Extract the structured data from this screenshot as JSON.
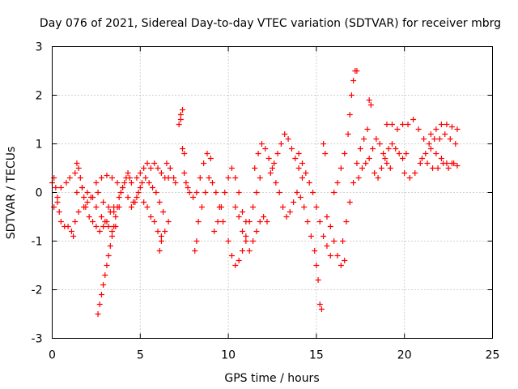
{
  "chart_data": {
    "type": "scatter",
    "title": "Day 076 of 2021, Sidereal Day-to-day VTEC variation (SDTVAR) for receiver mbrg",
    "xlabel": "GPS time / hours",
    "ylabel": "SDTVAR / TECUs",
    "xlim": [
      0,
      25
    ],
    "ylim": [
      -3,
      3
    ],
    "xticks": [
      "0",
      "5",
      "10",
      "15",
      "20",
      "25"
    ],
    "yticks": [
      "-3",
      "-2",
      "-1",
      "0",
      "1",
      "2",
      "3"
    ],
    "grid": true,
    "marker": "+",
    "color": "#ff0000",
    "series": [
      {
        "name": "SDTVAR",
        "points": [
          [
            0.0,
            0.2
          ],
          [
            0.1,
            0.3
          ],
          [
            0.2,
            0.1
          ],
          [
            0.3,
            -0.2
          ],
          [
            0.4,
            -0.4
          ],
          [
            0.5,
            -0.6
          ],
          [
            0.7,
            -0.7
          ],
          [
            0.9,
            -0.7
          ],
          [
            1.1,
            -0.8
          ],
          [
            1.2,
            -0.9
          ],
          [
            0.1,
            -0.3
          ],
          [
            0.3,
            -0.1
          ],
          [
            0.5,
            0.1
          ],
          [
            0.8,
            0.2
          ],
          [
            1.0,
            0.3
          ],
          [
            1.3,
            0.4
          ],
          [
            1.4,
            0.6
          ],
          [
            1.5,
            0.5
          ],
          [
            1.6,
            0.3
          ],
          [
            1.7,
            0.1
          ],
          [
            1.8,
            -0.1
          ],
          [
            1.9,
            -0.3
          ],
          [
            2.1,
            -0.5
          ],
          [
            2.3,
            -0.6
          ],
          [
            2.5,
            -0.7
          ],
          [
            2.7,
            -0.8
          ],
          [
            2.9,
            -0.7
          ],
          [
            3.1,
            -0.6
          ],
          [
            3.3,
            -0.4
          ],
          [
            3.5,
            -0.3
          ],
          [
            1.3,
            -0.6
          ],
          [
            1.5,
            -0.4
          ],
          [
            1.8,
            -0.3
          ],
          [
            2.0,
            -0.2
          ],
          [
            2.3,
            -0.1
          ],
          [
            2.6,
            0.0
          ],
          [
            2.9,
            -0.2
          ],
          [
            3.2,
            -0.3
          ],
          [
            3.5,
            -0.4
          ],
          [
            3.8,
            -0.3
          ],
          [
            1.4,
            0.0
          ],
          [
            1.7,
            0.1
          ],
          [
            2.0,
            0.0
          ],
          [
            2.2,
            -0.1
          ],
          [
            2.5,
            -0.3
          ],
          [
            2.8,
            -0.5
          ],
          [
            3.0,
            -0.6
          ],
          [
            3.2,
            -0.7
          ],
          [
            3.4,
            -0.8
          ],
          [
            3.6,
            -0.7
          ],
          [
            2.6,
            -2.5
          ],
          [
            2.7,
            -2.3
          ],
          [
            2.8,
            -2.1
          ],
          [
            2.9,
            -1.9
          ],
          [
            3.0,
            -1.7
          ],
          [
            3.1,
            -1.5
          ],
          [
            3.2,
            -1.3
          ],
          [
            3.3,
            -1.1
          ],
          [
            3.4,
            -0.9
          ],
          [
            3.5,
            -0.7
          ],
          [
            3.6,
            -0.5
          ],
          [
            3.7,
            -0.3
          ],
          [
            3.8,
            -0.1
          ],
          [
            3.9,
            0.0
          ],
          [
            4.0,
            0.1
          ],
          [
            4.1,
            0.2
          ],
          [
            4.2,
            0.3
          ],
          [
            4.3,
            0.4
          ],
          [
            4.4,
            0.3
          ],
          [
            4.5,
            0.2
          ],
          [
            2.5,
            0.2
          ],
          [
            2.8,
            0.3
          ],
          [
            3.1,
            0.35
          ],
          [
            3.4,
            0.3
          ],
          [
            3.7,
            0.2
          ],
          [
            4.0,
            0.1
          ],
          [
            4.3,
            -0.1
          ],
          [
            4.6,
            -0.2
          ],
          [
            4.8,
            -0.1
          ],
          [
            5.0,
            0.1
          ],
          [
            4.5,
            -0.3
          ],
          [
            4.7,
            -0.2
          ],
          [
            4.9,
            0.0
          ],
          [
            5.1,
            0.2
          ],
          [
            5.3,
            0.3
          ],
          [
            5.5,
            0.2
          ],
          [
            5.7,
            0.1
          ],
          [
            5.9,
            0.0
          ],
          [
            6.1,
            -0.2
          ],
          [
            6.3,
            -0.4
          ],
          [
            4.8,
            0.3
          ],
          [
            5.0,
            0.4
          ],
          [
            5.2,
            0.5
          ],
          [
            5.4,
            0.6
          ],
          [
            5.6,
            0.5
          ],
          [
            5.8,
            0.6
          ],
          [
            6.0,
            0.5
          ],
          [
            6.2,
            0.4
          ],
          [
            6.4,
            0.3
          ],
          [
            6.6,
            0.3
          ],
          [
            5.2,
            -0.2
          ],
          [
            5.4,
            -0.3
          ],
          [
            5.6,
            -0.5
          ],
          [
            5.8,
            -0.6
          ],
          [
            6.0,
            -0.8
          ],
          [
            6.2,
            -0.9
          ],
          [
            6.4,
            -0.8
          ],
          [
            6.6,
            -0.6
          ],
          [
            6.1,
            -1.2
          ],
          [
            6.2,
            -1.0
          ],
          [
            6.5,
            0.6
          ],
          [
            6.7,
            0.5
          ],
          [
            6.9,
            0.3
          ],
          [
            7.0,
            0.2
          ],
          [
            7.2,
            1.4
          ],
          [
            7.3,
            1.6
          ],
          [
            7.4,
            1.7
          ],
          [
            7.3,
            1.5
          ],
          [
            7.4,
            0.9
          ],
          [
            7.5,
            0.8
          ],
          [
            7.5,
            0.4
          ],
          [
            7.6,
            0.2
          ],
          [
            7.7,
            0.1
          ],
          [
            7.8,
            0.0
          ],
          [
            8.0,
            -0.1
          ],
          [
            8.2,
            0.0
          ],
          [
            8.4,
            0.3
          ],
          [
            8.6,
            0.6
          ],
          [
            8.8,
            0.8
          ],
          [
            9.0,
            0.7
          ],
          [
            8.1,
            -1.2
          ],
          [
            8.2,
            -1.0
          ],
          [
            8.3,
            -0.6
          ],
          [
            8.5,
            -0.3
          ],
          [
            8.7,
            0.0
          ],
          [
            8.9,
            0.3
          ],
          [
            9.1,
            0.2
          ],
          [
            9.3,
            0.0
          ],
          [
            9.5,
            -0.3
          ],
          [
            9.7,
            -0.6
          ],
          [
            9.2,
            -0.8
          ],
          [
            9.4,
            -0.6
          ],
          [
            9.6,
            -0.3
          ],
          [
            9.8,
            0.0
          ],
          [
            10.0,
            0.3
          ],
          [
            10.2,
            0.5
          ],
          [
            10.4,
            0.3
          ],
          [
            10.6,
            0.0
          ],
          [
            10.8,
            -0.4
          ],
          [
            11.0,
            -0.6
          ],
          [
            10.0,
            -1.0
          ],
          [
            10.2,
            -1.3
          ],
          [
            10.4,
            -1.5
          ],
          [
            10.6,
            -1.4
          ],
          [
            10.8,
            -1.2
          ],
          [
            11.0,
            -0.9
          ],
          [
            11.2,
            -0.6
          ],
          [
            11.4,
            -0.3
          ],
          [
            11.6,
            0.0
          ],
          [
            11.8,
            0.3
          ],
          [
            10.4,
            -0.3
          ],
          [
            10.6,
            -0.5
          ],
          [
            10.8,
            -0.8
          ],
          [
            11.0,
            -1.0
          ],
          [
            11.2,
            -1.2
          ],
          [
            11.4,
            -1.0
          ],
          [
            11.6,
            -0.8
          ],
          [
            11.8,
            -0.6
          ],
          [
            12.0,
            -0.5
          ],
          [
            12.2,
            -0.6
          ],
          [
            11.5,
            0.5
          ],
          [
            11.7,
            0.8
          ],
          [
            11.9,
            1.0
          ],
          [
            12.1,
            0.9
          ],
          [
            12.3,
            0.7
          ],
          [
            12.5,
            0.5
          ],
          [
            12.7,
            0.2
          ],
          [
            12.9,
            0.0
          ],
          [
            13.1,
            -0.3
          ],
          [
            13.3,
            -0.5
          ],
          [
            12.4,
            0.4
          ],
          [
            12.6,
            0.6
          ],
          [
            12.8,
            0.8
          ],
          [
            13.0,
            1.0
          ],
          [
            13.2,
            1.2
          ],
          [
            13.4,
            1.1
          ],
          [
            13.6,
            0.9
          ],
          [
            13.8,
            0.7
          ],
          [
            14.0,
            0.5
          ],
          [
            14.2,
            0.3
          ],
          [
            13.5,
            -0.4
          ],
          [
            13.7,
            -0.2
          ],
          [
            13.9,
            0.0
          ],
          [
            14.1,
            -0.1
          ],
          [
            14.3,
            -0.3
          ],
          [
            14.5,
            -0.6
          ],
          [
            14.7,
            -0.9
          ],
          [
            14.9,
            -1.2
          ],
          [
            15.0,
            -1.5
          ],
          [
            15.1,
            -1.8
          ],
          [
            14.0,
            0.8
          ],
          [
            14.2,
            0.6
          ],
          [
            14.4,
            0.4
          ],
          [
            14.6,
            0.2
          ],
          [
            14.8,
            0.0
          ],
          [
            15.0,
            -0.3
          ],
          [
            15.2,
            -0.6
          ],
          [
            15.4,
            -0.9
          ],
          [
            15.6,
            -1.1
          ],
          [
            15.8,
            -1.3
          ],
          [
            15.2,
            -2.3
          ],
          [
            15.3,
            -2.4
          ],
          [
            15.4,
            1.0
          ],
          [
            15.5,
            0.8
          ],
          [
            15.6,
            -0.5
          ],
          [
            15.8,
            -0.7
          ],
          [
            16.0,
            -1.0
          ],
          [
            16.2,
            -1.3
          ],
          [
            16.4,
            -1.5
          ],
          [
            16.6,
            -1.4
          ],
          [
            16.0,
            0.0
          ],
          [
            16.2,
            0.2
          ],
          [
            16.4,
            0.5
          ],
          [
            16.6,
            0.8
          ],
          [
            16.8,
            1.2
          ],
          [
            16.9,
            1.6
          ],
          [
            17.0,
            2.0
          ],
          [
            17.1,
            2.3
          ],
          [
            17.2,
            2.5
          ],
          [
            17.3,
            2.5
          ],
          [
            16.5,
            -1.0
          ],
          [
            16.7,
            -0.6
          ],
          [
            16.9,
            -0.2
          ],
          [
            17.1,
            0.2
          ],
          [
            17.3,
            0.6
          ],
          [
            17.5,
            0.9
          ],
          [
            17.7,
            1.1
          ],
          [
            17.9,
            1.3
          ],
          [
            18.0,
            1.9
          ],
          [
            18.1,
            1.8
          ],
          [
            17.4,
            0.3
          ],
          [
            17.6,
            0.5
          ],
          [
            17.8,
            0.6
          ],
          [
            18.0,
            0.7
          ],
          [
            18.2,
            0.9
          ],
          [
            18.4,
            1.1
          ],
          [
            18.6,
            1.0
          ],
          [
            18.8,
            0.8
          ],
          [
            19.0,
            0.6
          ],
          [
            19.2,
            0.5
          ],
          [
            18.3,
            0.4
          ],
          [
            18.5,
            0.3
          ],
          [
            18.7,
            0.5
          ],
          [
            18.9,
            0.7
          ],
          [
            19.1,
            0.9
          ],
          [
            19.3,
            1.0
          ],
          [
            19.5,
            0.9
          ],
          [
            19.7,
            0.8
          ],
          [
            19.9,
            0.7
          ],
          [
            20.1,
            0.8
          ],
          [
            19.0,
            1.4
          ],
          [
            19.3,
            1.4
          ],
          [
            19.6,
            1.3
          ],
          [
            19.9,
            1.4
          ],
          [
            20.2,
            1.4
          ],
          [
            20.5,
            1.5
          ],
          [
            20.8,
            1.3
          ],
          [
            21.1,
            1.1
          ],
          [
            21.4,
            1.0
          ],
          [
            21.7,
            1.1
          ],
          [
            20.0,
            0.4
          ],
          [
            20.3,
            0.3
          ],
          [
            20.6,
            0.4
          ],
          [
            20.9,
            0.6
          ],
          [
            21.2,
            0.8
          ],
          [
            21.5,
            0.9
          ],
          [
            21.8,
            0.8
          ],
          [
            22.1,
            0.7
          ],
          [
            22.4,
            0.6
          ],
          [
            22.7,
            0.6
          ],
          [
            21.0,
            0.7
          ],
          [
            21.3,
            0.6
          ],
          [
            21.6,
            0.5
          ],
          [
            21.9,
            0.5
          ],
          [
            22.2,
            0.6
          ],
          [
            22.5,
            0.5
          ],
          [
            22.8,
            0.6
          ],
          [
            23.0,
            0.55
          ],
          [
            21.5,
            1.2
          ],
          [
            21.8,
            1.3
          ],
          [
            22.1,
            1.4
          ],
          [
            22.4,
            1.4
          ],
          [
            22.7,
            1.35
          ],
          [
            23.0,
            1.3
          ],
          [
            22.0,
            1.1
          ],
          [
            22.3,
            1.2
          ],
          [
            22.6,
            1.1
          ],
          [
            22.9,
            1.0
          ]
        ]
      }
    ]
  }
}
